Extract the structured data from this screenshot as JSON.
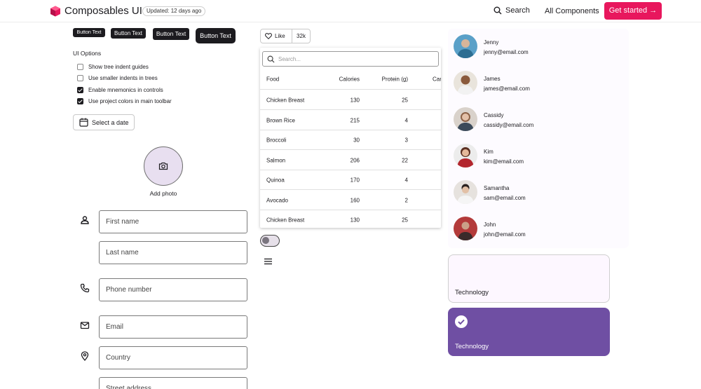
{
  "header": {
    "brand": "Composables UI",
    "updated": "Updated: 12 days ago",
    "search_label": "Search",
    "all_components": "All Components",
    "cta": "Get started →",
    "brand_color": "#e8175d"
  },
  "button_row": [
    "Button Text",
    "Button Text",
    "Button Text",
    "Button Text"
  ],
  "ui_options": {
    "title": "UI Options",
    "items": [
      {
        "label": "Show tree indent guides",
        "checked": false
      },
      {
        "label": "Use smaller indents in trees",
        "checked": false
      },
      {
        "label": "Enable mnemonics in controls",
        "checked": true
      },
      {
        "label": "Use project colors in main toolbar",
        "checked": true
      }
    ]
  },
  "date_button": "Select a date",
  "photo": {
    "label": "Add photo"
  },
  "form": {
    "first_name": "First name",
    "last_name": "Last name",
    "phone": "Phone number",
    "email": "Email",
    "country": "Country",
    "street": "Street address"
  },
  "like": {
    "label": "Like",
    "count": "32k"
  },
  "food_table": {
    "search_placeholder": "Search...",
    "headers": [
      "Food",
      "Calories",
      "Protein (g)",
      "Carbs"
    ],
    "rows": [
      {
        "food": "Chicken Breast",
        "calories": "130",
        "protein": "25"
      },
      {
        "food": "Brown Rice",
        "calories": "215",
        "protein": "4"
      },
      {
        "food": "Broccoli",
        "calories": "30",
        "protein": "3"
      },
      {
        "food": "Salmon",
        "calories": "206",
        "protein": "22"
      },
      {
        "food": "Quinoa",
        "calories": "170",
        "protein": "4"
      },
      {
        "food": "Avocado",
        "calories": "160",
        "protein": "2"
      },
      {
        "food": "Chicken Breast",
        "calories": "130",
        "protein": "25"
      }
    ]
  },
  "toggle": {
    "on": false
  },
  "contacts": [
    {
      "name": "Jenny",
      "email": "jenny@email.com",
      "color": "#3d7ea6"
    },
    {
      "name": "James",
      "email": "james@email.com",
      "color": "#7a5a45"
    },
    {
      "name": "Cassidy",
      "email": "cassidy@email.com",
      "color": "#b98f7a"
    },
    {
      "name": "Kim",
      "email": "kim@email.com",
      "color": "#a83a3a"
    },
    {
      "name": "Samantha",
      "email": "sam@email.com",
      "color": "#c9c2bb"
    },
    {
      "name": "John",
      "email": "john@email.com",
      "color": "#9c3535"
    }
  ],
  "categories": [
    {
      "label": "Technology",
      "selected": false
    },
    {
      "label": "Technology",
      "selected": true
    }
  ],
  "selected_color": "#6f4fa3"
}
